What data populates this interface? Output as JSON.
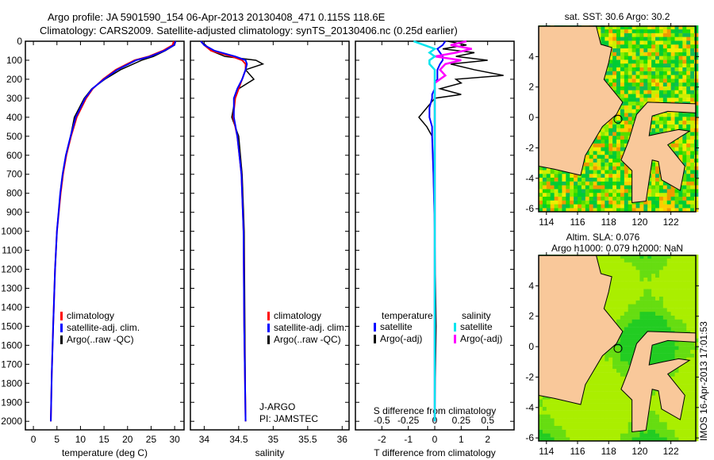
{
  "title_line1": "Argo profile: JA 5901590_154 06-Apr-2013 20130408_471 0.115S 118.6E",
  "title_line2": "Climatology: CARS2009. Satellite-adjusted climatology: synTS_20130406.nc (0.25d earlier)",
  "footer_stamp": "IMOS 16-Apr-2013 17:01:53",
  "colors": {
    "climatology": "#ff0000",
    "satellite": "#0000ff",
    "argo": "#000000",
    "sal_satellite": "#00e5ee",
    "sal_argo": "#ff00ff"
  },
  "chart_data": [
    {
      "type": "line",
      "xlabel": "temperature (deg C)",
      "ylabel": "",
      "xlim": [
        -1.7,
        32
      ],
      "ylim": [
        2045,
        0
      ],
      "xticks": [
        "0",
        "5",
        "10",
        "15",
        "20",
        "25",
        "30"
      ],
      "yticks": [
        "0",
        "100",
        "200",
        "300",
        "400",
        "500",
        "600",
        "700",
        "800",
        "900",
        "1000",
        "1100",
        "1200",
        "1300",
        "1400",
        "1500",
        "1600",
        "1700",
        "1800",
        "1900",
        "2000"
      ],
      "legend": [
        "climatology",
        "satellite-adj. clim.",
        "Argo(..raw -QC)"
      ],
      "legend_position": "lower-center",
      "depth": [
        0,
        20,
        50,
        80,
        100,
        150,
        200,
        250,
        300,
        400,
        500,
        600,
        700,
        800,
        1000,
        1200,
        1500,
        1750,
        2000
      ],
      "series": [
        {
          "name": "climatology",
          "values": [
            29.8,
            29.6,
            27.5,
            24.5,
            21.5,
            17.5,
            14.8,
            12.6,
            11.2,
            9.2,
            8.0,
            7.0,
            6.3,
            5.8,
            5.0,
            4.6,
            4.2,
            3.9,
            3.7
          ]
        },
        {
          "name": "satellite-adj. clim.",
          "values": [
            30.2,
            29.9,
            27.8,
            24.8,
            21.8,
            17.8,
            15.0,
            12.5,
            11.0,
            9.0,
            7.9,
            6.9,
            6.2,
            5.7,
            5.0,
            4.6,
            4.2,
            3.9,
            3.7
          ]
        },
        {
          "name": "Argo(..raw -QC)",
          "values": [
            30.2,
            30.0,
            28.0,
            25.5,
            23.0,
            18.5,
            15.2,
            12.4,
            10.8,
            8.7,
            7.9,
            6.9,
            6.2,
            5.7,
            5.0,
            4.6,
            4.2,
            3.9,
            3.7
          ]
        }
      ]
    },
    {
      "type": "line",
      "xlabel": "salinity",
      "xlim": [
        33.8,
        36.1
      ],
      "ylim": [
        2045,
        0
      ],
      "xticks": [
        "34",
        "34.5",
        "35",
        "35.5",
        "36"
      ],
      "legend": [
        "climatology",
        "satellite-adj. clim.",
        "Argo(..raw -QC)"
      ],
      "annotation": [
        "J-ARGO",
        "PI: JAMSTEC"
      ],
      "depth": [
        0,
        20,
        50,
        80,
        100,
        120,
        150,
        200,
        250,
        300,
        400,
        500,
        700,
        1000,
        1500,
        2000
      ],
      "series": [
        {
          "name": "climatology",
          "values": [
            33.95,
            34.0,
            34.1,
            34.4,
            34.55,
            34.6,
            34.6,
            34.55,
            34.5,
            34.45,
            34.42,
            34.48,
            34.54,
            34.57,
            34.58,
            34.6
          ]
        },
        {
          "name": "satellite-adj. clim.",
          "values": [
            33.95,
            34.0,
            34.15,
            34.45,
            34.6,
            34.62,
            34.6,
            34.55,
            34.48,
            34.43,
            34.43,
            34.48,
            34.54,
            34.57,
            34.58,
            34.6
          ]
        },
        {
          "name": "Argo(..raw -QC)",
          "values": [
            33.95,
            34.02,
            34.1,
            34.3,
            34.75,
            34.85,
            34.6,
            34.72,
            34.5,
            34.45,
            34.4,
            34.5,
            34.55,
            34.58,
            34.59,
            34.6
          ]
        }
      ]
    },
    {
      "type": "line",
      "xlabel": "T difference from climatology",
      "x2label": "S difference from climatology",
      "xlim": [
        -3,
        3
      ],
      "x2lim": [
        -0.75,
        0.75
      ],
      "xticks": [
        "-2",
        "-1",
        "0",
        "1",
        "2"
      ],
      "x2ticks": [
        "-0.5",
        "-0.25",
        "0",
        "0.25",
        "0.5"
      ],
      "legend_groups": [
        {
          "title": "temperature",
          "items": [
            "satellite",
            "Argo(-adj)"
          ]
        },
        {
          "title": "salinity",
          "items": [
            "satellite",
            "Argo(-adj)"
          ]
        }
      ],
      "depth": [
        0,
        20,
        40,
        60,
        80,
        100,
        120,
        150,
        180,
        200,
        220,
        250,
        280,
        300,
        350,
        400,
        450,
        500,
        700,
        1000,
        1500,
        2000
      ],
      "series": [
        {
          "name": "T satellite",
          "values": [
            0.4,
            0.3,
            0.1,
            0.2,
            0.3,
            0.3,
            0.2,
            0.1,
            0.1,
            0.1,
            0.0,
            0.0,
            -0.1,
            -0.1,
            -0.2,
            -0.2,
            -0.1,
            -0.1,
            -0.05,
            0,
            0,
            0
          ]
        },
        {
          "name": "T Argo(-adj)",
          "values": [
            0.5,
            1.2,
            0.3,
            1.5,
            0.8,
            2.0,
            0.6,
            1.5,
            2.6,
            0.8,
            1.0,
            0.2,
            1.0,
            0.0,
            -0.3,
            -0.6,
            -0.3,
            -0.1,
            -0.05,
            0,
            0.05,
            0
          ]
        },
        {
          "name": "S satellite",
          "values": [
            -0.2,
            -0.1,
            0.0,
            -0.05,
            0.0,
            -0.05,
            -0.05,
            0,
            0,
            0,
            0,
            0,
            0,
            0,
            0,
            0,
            0,
            0,
            0,
            0,
            0,
            0
          ]
        },
        {
          "name": "S Argo(-adj)",
          "values": [
            0.3,
            0.15,
            0.35,
            0.2,
            0.0,
            0.25,
            0.1,
            0.05,
            0.1,
            0.05,
            0.0,
            0.0,
            0.0,
            0.0,
            0.0,
            0,
            0,
            0,
            0,
            0,
            0,
            0
          ]
        }
      ]
    },
    {
      "type": "heatmap",
      "title": "sat. SST: 30.6 Argo: 30.2",
      "xticks": [
        "114",
        "116",
        "118",
        "120",
        "122"
      ],
      "yticks": [
        "4",
        "2",
        "0",
        "-2",
        "-4",
        "-6"
      ],
      "xlim": [
        113.5,
        123.6
      ],
      "ylim": [
        -6.2,
        6
      ],
      "marker": {
        "lon": 118.6,
        "lat": -0.115
      }
    },
    {
      "type": "heatmap",
      "title": "Altim. SLA: 0.076",
      "subtitle": "Argo h1000: 0.079 h2000: NaN",
      "xticks": [
        "114",
        "116",
        "118",
        "120",
        "122"
      ],
      "yticks": [
        "4",
        "2",
        "0",
        "-2",
        "-4",
        "-6"
      ],
      "xlim": [
        113.5,
        123.6
      ],
      "ylim": [
        -6.2,
        6
      ],
      "marker": {
        "lon": 118.6,
        "lat": -0.115
      }
    }
  ]
}
